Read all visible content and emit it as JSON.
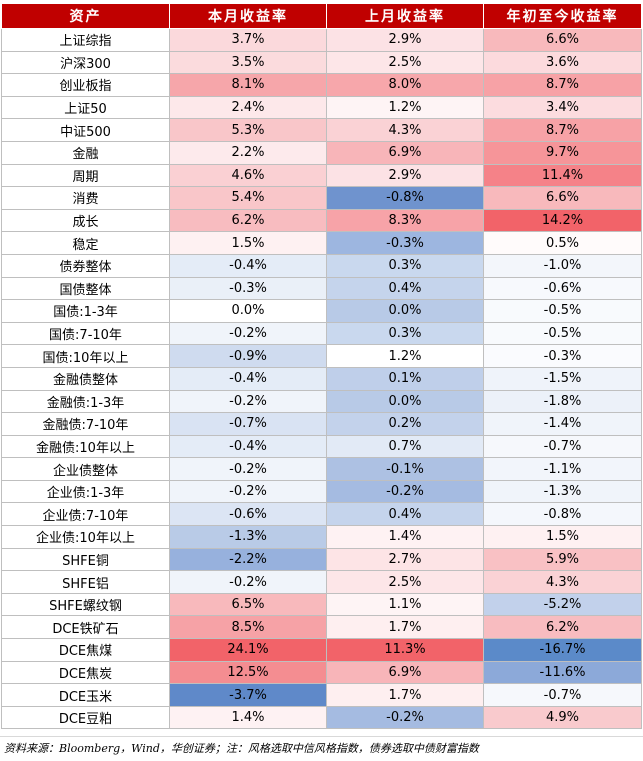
{
  "headers": [
    "资产",
    "本月收益率",
    "上月收益率",
    "年初至今收益率"
  ],
  "rows": [
    {
      "name": "上证综指",
      "v": [
        "3.7%",
        "2.9%",
        "6.6%"
      ],
      "c": [
        "#FBD9DC",
        "#FCE2E5",
        "#F8B9BC"
      ]
    },
    {
      "name": "沪深300",
      "v": [
        "3.5%",
        "2.5%",
        "3.6%"
      ],
      "c": [
        "#FBDBDD",
        "#FDE6E8",
        "#FCDADD"
      ]
    },
    {
      "name": "创业板指",
      "v": [
        "8.1%",
        "8.0%",
        "8.7%"
      ],
      "c": [
        "#F6A6AA",
        "#F7A7AB",
        "#F7A2A6"
      ]
    },
    {
      "name": "上证50",
      "v": [
        "2.4%",
        "1.2%",
        "3.4%"
      ],
      "c": [
        "#FDE8EA",
        "#FEF4F5",
        "#FCDCDF"
      ]
    },
    {
      "name": "中证500",
      "v": [
        "5.3%",
        "4.3%",
        "8.7%"
      ],
      "c": [
        "#F9C6C9",
        "#FAD2D5",
        "#F7A2A6"
      ]
    },
    {
      "name": "金融",
      "v": [
        "2.2%",
        "6.9%",
        "9.7%"
      ],
      "c": [
        "#FDEAEC",
        "#F8B5B9",
        "#F69599"
      ]
    },
    {
      "name": "周期",
      "v": [
        "4.6%",
        "2.9%",
        "11.4%"
      ],
      "c": [
        "#FAD0D3",
        "#FCE2E5",
        "#F58288"
      ]
    },
    {
      "name": "消费",
      "v": [
        "5.4%",
        "-0.8%",
        "6.6%"
      ],
      "c": [
        "#F9C6C9",
        "#6F93CE",
        "#F8B9BC"
      ]
    },
    {
      "name": "成长",
      "v": [
        "6.2%",
        "8.3%",
        "14.2%"
      ],
      "c": [
        "#F8BCC0",
        "#F7A3A8",
        "#F26369"
      ]
    },
    {
      "name": "稳定",
      "v": [
        "1.5%",
        "-0.3%",
        "0.5%"
      ],
      "c": [
        "#FEF1F2",
        "#9DB6E0",
        "#FFFBFB"
      ]
    },
    {
      "name": "债券整体",
      "v": [
        "-0.4%",
        "0.3%",
        "-1.0%"
      ],
      "c": [
        "#E4ECF7",
        "#C9D8EE",
        "#F3F6FB"
      ]
    },
    {
      "name": "国债整体",
      "v": [
        "-0.3%",
        "0.4%",
        "-0.6%"
      ],
      "c": [
        "#EAF0F8",
        "#C5D4EC",
        "#F7F9FD"
      ]
    },
    {
      "name": "国债:1-3年",
      "v": [
        "0.0%",
        "0.0%",
        "-0.5%"
      ],
      "c": [
        "#FFFFFF",
        "#B8CAE7",
        "#F8FAFD"
      ]
    },
    {
      "name": "国债:7-10年",
      "v": [
        "-0.2%",
        "0.3%",
        "-0.5%"
      ],
      "c": [
        "#F0F4FA",
        "#C9D8EE",
        "#F8FAFD"
      ]
    },
    {
      "name": "国债:10年以上",
      "v": [
        "-0.9%",
        "1.2%",
        "-0.3%"
      ],
      "c": [
        "#CFDBEF",
        "#FFFFFF",
        "#FAFBFE"
      ]
    },
    {
      "name": "金融债整体",
      "v": [
        "-0.4%",
        "0.1%",
        "-1.5%"
      ],
      "c": [
        "#E4ECF7",
        "#BFCFEA",
        "#EFF3FA"
      ]
    },
    {
      "name": "金融债:1-3年",
      "v": [
        "-0.2%",
        "0.0%",
        "-1.8%"
      ],
      "c": [
        "#F0F4FA",
        "#B8CAE7",
        "#ECF1F9"
      ]
    },
    {
      "name": "金融债:7-10年",
      "v": [
        "-0.7%",
        "0.2%",
        "-1.4%"
      ],
      "c": [
        "#D9E3F3",
        "#C3D2EB",
        "#F0F4FA"
      ]
    },
    {
      "name": "金融债:10年以上",
      "v": [
        "-0.4%",
        "0.7%",
        "-0.7%"
      ],
      "c": [
        "#E4ECF7",
        "#E2EAF6",
        "#F6F8FC"
      ]
    },
    {
      "name": "企业债整体",
      "v": [
        "-0.2%",
        "-0.1%",
        "-1.1%"
      ],
      "c": [
        "#F0F4FA",
        "#ADC1E3",
        "#F2F5FB"
      ]
    },
    {
      "name": "企业债:1-3年",
      "v": [
        "-0.2%",
        "-0.2%",
        "-1.3%"
      ],
      "c": [
        "#F0F4FA",
        "#A5BBE1",
        "#F0F4FA"
      ]
    },
    {
      "name": "企业债:7-10年",
      "v": [
        "-0.6%",
        "0.4%",
        "-0.8%"
      ],
      "c": [
        "#DCE5F4",
        "#C5D4EC",
        "#F4F7FC"
      ]
    },
    {
      "name": "企业债:10年以上",
      "v": [
        "-1.3%",
        "1.4%",
        "1.5%"
      ],
      "c": [
        "#B9CBE7",
        "#FEF2F3",
        "#FEF1F2"
      ]
    },
    {
      "name": "SHFE铜",
      "v": [
        "-2.2%",
        "2.7%",
        "5.9%"
      ],
      "c": [
        "#97B1DD",
        "#FDE4E6",
        "#F9C1C4"
      ]
    },
    {
      "name": "SHFE铝",
      "v": [
        "-0.2%",
        "2.5%",
        "4.3%"
      ],
      "c": [
        "#F0F4FA",
        "#FDE6E8",
        "#FAD2D5"
      ]
    },
    {
      "name": "SHFE螺纹钢",
      "v": [
        "6.5%",
        "1.1%",
        "-5.2%"
      ],
      "c": [
        "#F8B9BC",
        "#FEF4F5",
        "#C2D1EB"
      ]
    },
    {
      "name": "DCE铁矿石",
      "v": [
        "8.5%",
        "1.7%",
        "6.2%"
      ],
      "c": [
        "#F6A2A6",
        "#FEEFF0",
        "#F8BCC0"
      ]
    },
    {
      "name": "DCE焦煤",
      "v": [
        "24.1%",
        "11.3%",
        "-16.7%"
      ],
      "c": [
        "#F26369",
        "#F26369",
        "#5B8AC9"
      ]
    },
    {
      "name": "DCE焦炭",
      "v": [
        "12.5%",
        "6.9%",
        "-11.6%"
      ],
      "c": [
        "#F48D91",
        "#F8B5B9",
        "#8CA9D9"
      ]
    },
    {
      "name": "DCE玉米",
      "v": [
        "-3.7%",
        "1.7%",
        "-0.7%"
      ],
      "c": [
        "#5F89C9",
        "#FEEFF0",
        "#F6F8FC"
      ]
    },
    {
      "name": "DCE豆粕",
      "v": [
        "1.4%",
        "-0.2%",
        "4.9%"
      ],
      "c": [
        "#FEF2F3",
        "#A5BBE1",
        "#F9CACD"
      ]
    }
  ],
  "source_note": "资料来源：Bloomberg，Wind，华创证券；注：风格选取中信风格指数，债券选取中债财富指数"
}
